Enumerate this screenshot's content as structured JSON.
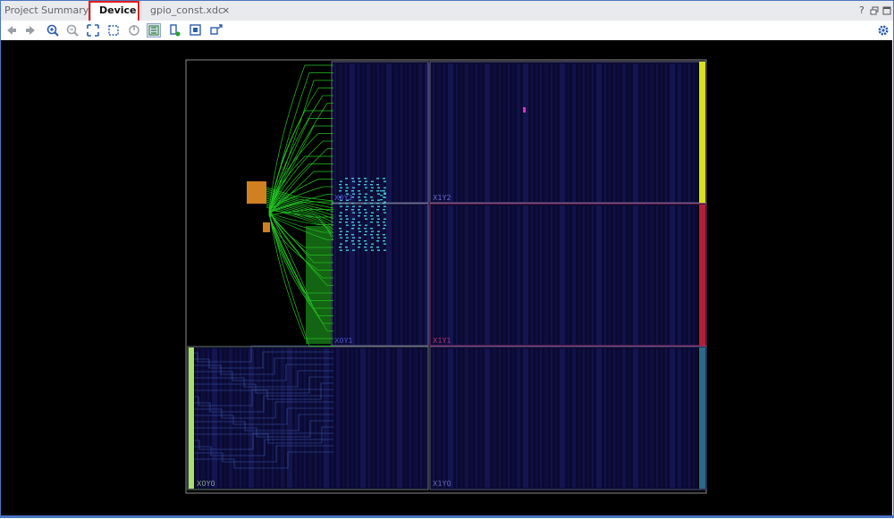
{
  "tabs": [
    {
      "label": "Project Summary",
      "active": false,
      "closable": false
    },
    {
      "label": "Device",
      "active": true,
      "closable": false
    },
    {
      "label": "gpio_const.xdc",
      "active": false,
      "closable": true
    }
  ],
  "window_controls": {
    "help": "?",
    "close_tab": "×"
  },
  "toolbar": {
    "icons": [
      "back-icon",
      "forward-icon",
      "zoom-in-icon",
      "zoom-out-icon",
      "zoom-fit-icon",
      "zoom-area-icon",
      "refresh-icon",
      "routing-resources-icon",
      "placement-icon",
      "select-area-icon",
      "fit-selection-icon"
    ],
    "settings_icon": "gear-icon"
  },
  "regions": [
    {
      "name": "X0Y2",
      "color": "#5050c8"
    },
    {
      "name": "X1Y2",
      "color": "#6a6ad0"
    },
    {
      "name": "X0Y1",
      "color": "#5050c8"
    },
    {
      "name": "X1Y1",
      "color": "#b03070"
    },
    {
      "name": "X0Y0",
      "color": "#6a8a6a"
    },
    {
      "name": "X1Y0",
      "color": "#5050a0"
    }
  ],
  "colors": {
    "canvas_bg": "#000000",
    "fabric_bg": "#0a0a35",
    "routing": "#22c422",
    "io_bank": "#d08020",
    "clock_bar_top": "#d8e020",
    "clock_bar_mid": "#b0203a",
    "clock_bar_low": "#2a6a8a",
    "io_strip": "#a8e070"
  }
}
